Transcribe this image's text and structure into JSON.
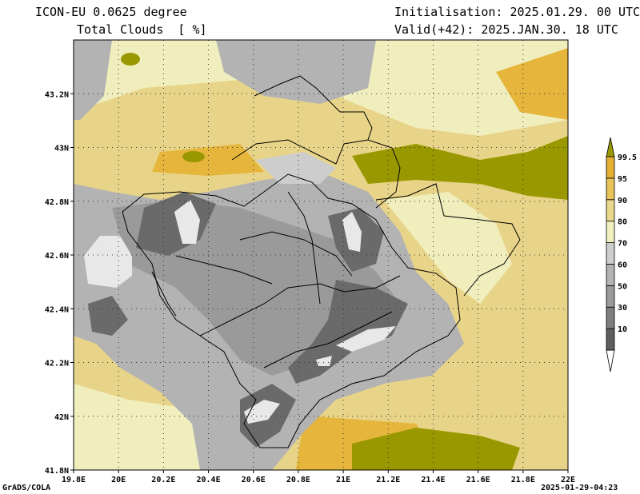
{
  "header": {
    "model": "ICON-EU 0.0625 degree",
    "variable": "Total Clouds  [ %]",
    "init": "Initialisation: 2025.01.29. 00 UTC",
    "valid": "Valid(+42): 2025.JAN.30. 18 UTC"
  },
  "footer": {
    "left": "GrADS/COLA",
    "right": "2025-01-29-04:23"
  },
  "axes": {
    "x_ticks": [
      "19.8E",
      "20E",
      "20.2E",
      "20.4E",
      "20.6E",
      "20.8E",
      "21E",
      "21.2E",
      "21.4E",
      "21.6E",
      "21.8E",
      "22E"
    ],
    "y_ticks": [
      "43.2N",
      "43N",
      "42.8N",
      "42.6N",
      "42.4N",
      "42.2N",
      "42N",
      "41.8N"
    ],
    "lon_range": [
      19.8,
      22.0
    ],
    "lat_range": [
      41.8,
      43.4
    ],
    "grid": "dotted"
  },
  "legend": {
    "placement": "right",
    "levels": [
      "99.5",
      "95",
      "90",
      "80",
      "70",
      "60",
      "50",
      "30",
      "10"
    ],
    "colors": [
      "#ffffff",
      "#5e5e5e",
      "#7e7e7e",
      "#9a9a9a",
      "#b3b3b3",
      "#cdcdcd",
      "#f0efc0",
      "#ead88c",
      "#e7c35a",
      "#e3b032",
      "#9a9800"
    ]
  }
}
